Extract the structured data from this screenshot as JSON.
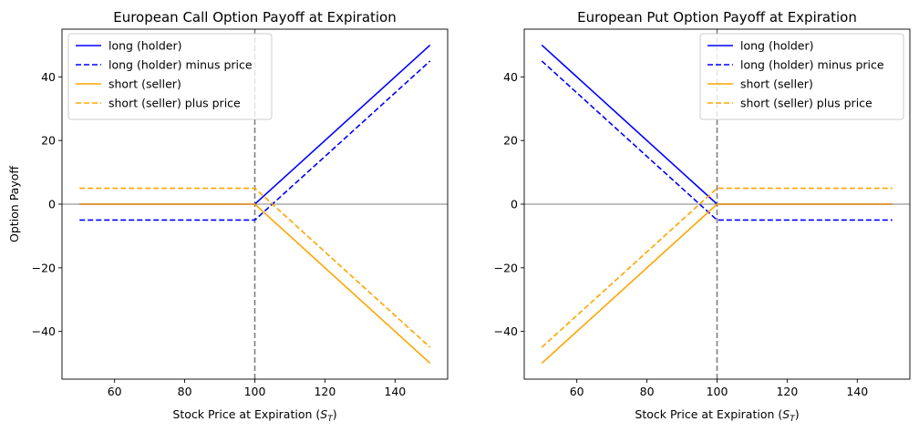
{
  "chart_data": [
    {
      "type": "line",
      "title": "European Call Option Payoff at Expiration",
      "xlabel": "Stock Price at Expiration ($S_T$)",
      "xlabel_main": "Stock Price at Expiration (",
      "xlabel_sym": "S",
      "xlabel_sub": "T",
      "xlabel_tail": ")",
      "ylabel": "Option Payoff",
      "xlim": [
        45,
        155
      ],
      "ylim": [
        -55,
        55
      ],
      "xticks": [
        60,
        80,
        100,
        120,
        140
      ],
      "yticks": [
        -40,
        -20,
        0,
        20,
        40
      ],
      "ytick_labels": [
        "−40",
        "−20",
        "0",
        "20",
        "40"
      ],
      "strike_line_x": 100,
      "legend_position": "upper left",
      "series": [
        {
          "name": "long (holder)",
          "color": "#0000ff",
          "dash": "solid",
          "x": [
            50,
            100,
            150
          ],
          "values": [
            0,
            0,
            50
          ]
        },
        {
          "name": "long (holder) minus price",
          "color": "#0000ff",
          "dash": "dashed",
          "x": [
            50,
            100,
            150
          ],
          "values": [
            -5,
            -5,
            45
          ]
        },
        {
          "name": "short (seller)",
          "color": "#ffa500",
          "dash": "solid",
          "x": [
            50,
            100,
            150
          ],
          "values": [
            0,
            0,
            -50
          ]
        },
        {
          "name": "short (seller) plus price",
          "color": "#ffa500",
          "dash": "dashed",
          "x": [
            50,
            100,
            150
          ],
          "values": [
            5,
            5,
            -45
          ]
        }
      ]
    },
    {
      "type": "line",
      "title": "European Put Option Payoff at Expiration",
      "xlabel": "Stock Price at Expiration ($S_T$)",
      "xlabel_main": "Stock Price at Expiration (",
      "xlabel_sym": "S",
      "xlabel_sub": "T",
      "xlabel_tail": ")",
      "ylabel": "",
      "xlim": [
        45,
        155
      ],
      "ylim": [
        -55,
        55
      ],
      "xticks": [
        60,
        80,
        100,
        120,
        140
      ],
      "yticks": [
        -40,
        -20,
        0,
        20,
        40
      ],
      "ytick_labels": [
        "−40",
        "−20",
        "0",
        "20",
        "40"
      ],
      "strike_line_x": 100,
      "legend_position": "upper right",
      "series": [
        {
          "name": "long (holder)",
          "color": "#0000ff",
          "dash": "solid",
          "x": [
            50,
            100,
            150
          ],
          "values": [
            50,
            0,
            0
          ]
        },
        {
          "name": "long (holder) minus price",
          "color": "#0000ff",
          "dash": "dashed",
          "x": [
            50,
            100,
            150
          ],
          "values": [
            45,
            -5,
            -5
          ]
        },
        {
          "name": "short (seller)",
          "color": "#ffa500",
          "dash": "solid",
          "x": [
            50,
            100,
            150
          ],
          "values": [
            -50,
            0,
            0
          ]
        },
        {
          "name": "short (seller) plus price",
          "color": "#ffa500",
          "dash": "dashed",
          "x": [
            50,
            100,
            150
          ],
          "values": [
            -45,
            5,
            5
          ]
        }
      ]
    }
  ]
}
